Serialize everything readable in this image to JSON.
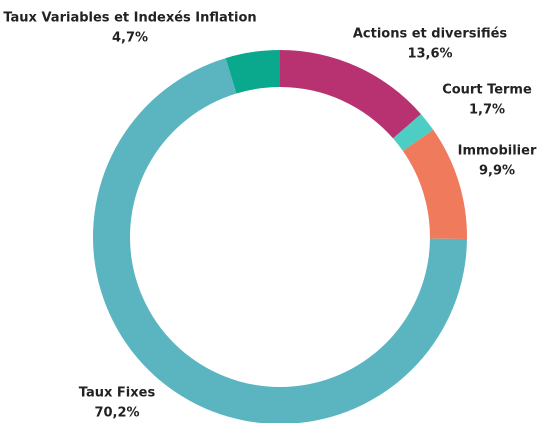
{
  "chart_data": {
    "type": "donut",
    "categories": [
      "Actions et diversifiés",
      "Court Terme",
      "Immobilier",
      "Taux Fixes",
      "Taux Variables et Indexés Inflation"
    ],
    "values": [
      13.6,
      1.7,
      9.9,
      70.2,
      4.7
    ],
    "value_labels": [
      "13,6%",
      "1,7%",
      "9,9%",
      "70,2%",
      "4,7%"
    ],
    "colors": [
      "#b83272",
      "#4ecdc4",
      "#f07b5c",
      "#5ab5c1",
      "#0aa88c"
    ]
  }
}
